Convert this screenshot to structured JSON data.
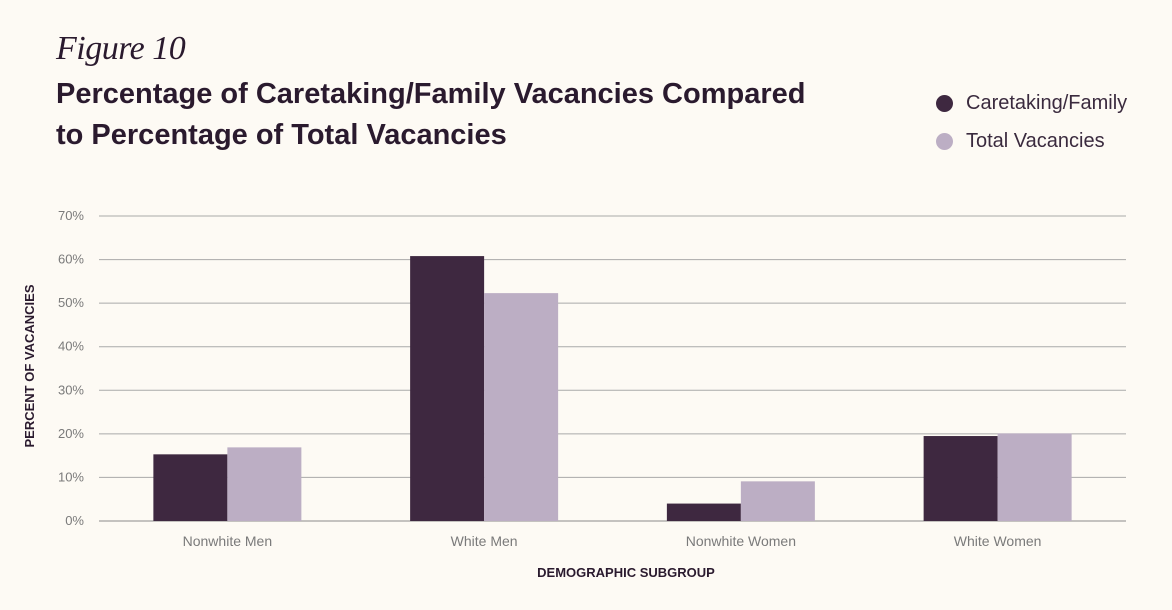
{
  "figure_label": "Figure 10",
  "chart_data": {
    "type": "bar",
    "title": "Percentage of Caretaking/Family Vacancies Compared to Percentage of Total Vacancies",
    "title_lines": [
      "Percentage of Caretaking/Family Vacancies Compared",
      "to Percentage of Total Vacancies"
    ],
    "xlabel": "DEMOGRAPHIC SUBGROUP",
    "ylabel": "PERCENT OF VACANCIES",
    "categories": [
      "Nonwhite Men",
      "White Men",
      "Nonwhite Women",
      "White Women"
    ],
    "series": [
      {
        "name": "Caretaking/Family",
        "color": "#3e2840",
        "values": [
          15.3,
          60.8,
          4.0,
          19.5
        ]
      },
      {
        "name": "Total Vacancies",
        "color": "#bcaec4",
        "values": [
          16.9,
          52.3,
          9.1,
          20.1
        ]
      }
    ],
    "ylim": [
      0,
      70
    ],
    "yticks": [
      0,
      10,
      20,
      30,
      40,
      50,
      60,
      70
    ],
    "ytick_labels": [
      "0%",
      "10%",
      "20%",
      "30%",
      "40%",
      "50%",
      "60%",
      "70%"
    ],
    "grid": true,
    "legend_position": "top-right"
  }
}
